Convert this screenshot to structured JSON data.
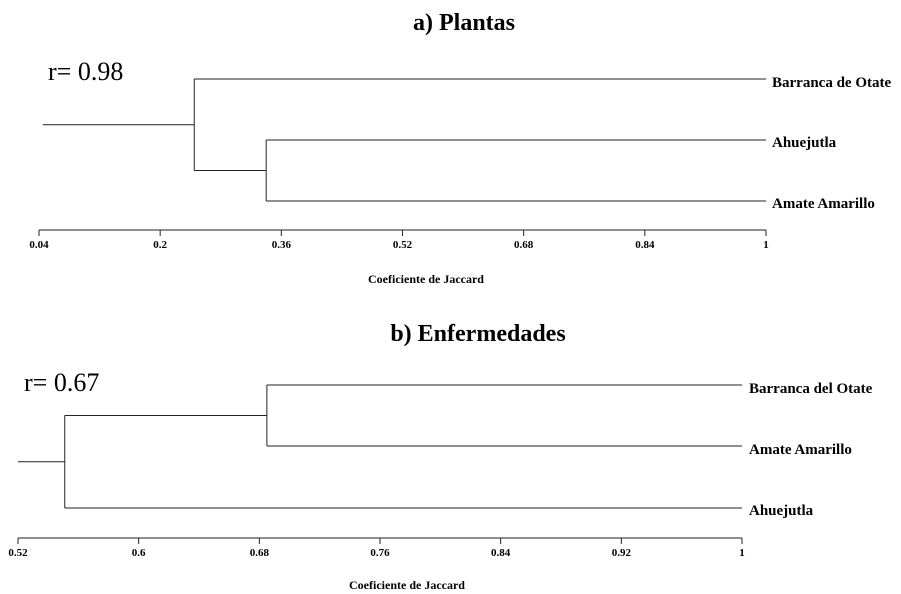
{
  "chart_data": [
    {
      "type": "dendrogram",
      "title": "a) Plantas",
      "r_label": "r= 0.98",
      "xlabel": "Coeficiente de Jaccard",
      "xlim": [
        0.04,
        1
      ],
      "ticks": [
        0.04,
        0.2,
        0.36,
        0.52,
        0.68,
        0.84,
        1
      ],
      "tick_labels": [
        "0.04",
        "0.2",
        "0.36",
        "0.52",
        "0.68",
        "0.84",
        "1"
      ],
      "leaves": [
        "Barranca de Otate",
        "Ahuejutla",
        "Amate Amarillo"
      ],
      "merges": [
        {
          "members": [
            "Ahuejutla",
            "Amate Amarillo"
          ],
          "similarity": 0.34
        },
        {
          "members": [
            "Barranca de Otate",
            "Ahuejutla",
            "Amate Amarillo"
          ],
          "similarity": 0.245
        }
      ],
      "root_similarity": 0.045
    },
    {
      "type": "dendrogram",
      "title": "b) Enfermedades",
      "r_label": "r= 0.67",
      "xlabel": "Coeficiente de Jaccard",
      "xlim": [
        0.52,
        1
      ],
      "ticks": [
        0.52,
        0.6,
        0.68,
        0.76,
        0.84,
        0.92,
        1
      ],
      "tick_labels": [
        "0.52",
        "0.6",
        "0.68",
        "0.76",
        "0.84",
        "0.92",
        "1"
      ],
      "leaves": [
        "Barranca del Otate",
        "Amate Amarillo",
        "Ahuejutla"
      ],
      "merges": [
        {
          "members": [
            "Barranca del Otate",
            "Amate Amarillo"
          ],
          "similarity": 0.685
        },
        {
          "members": [
            "Barranca del Otate",
            "Amate Amarillo",
            "Ahuejutla"
          ],
          "similarity": 0.551
        }
      ],
      "root_similarity": 0.52
    }
  ]
}
